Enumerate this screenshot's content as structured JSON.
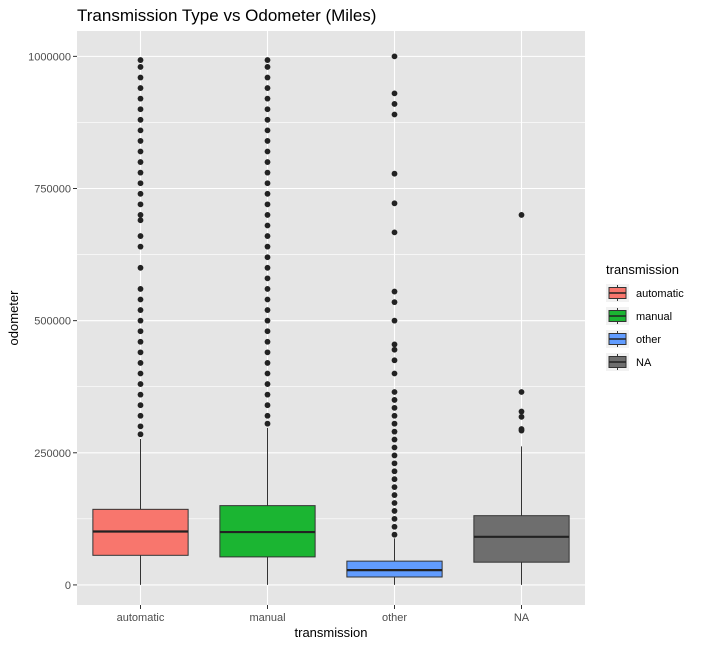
{
  "chart_data": {
    "type": "boxplot",
    "title": "Transmission Type vs Odometer (Miles)",
    "xlabel": "transmission",
    "ylabel": "odometer",
    "ylim": [
      -38000,
      1048000
    ],
    "y_ticks": [
      0,
      250000,
      500000,
      750000,
      1000000
    ],
    "y_tick_labels": [
      "0",
      "250000",
      "500000",
      "750000",
      "1000000"
    ],
    "grid": true,
    "legend": {
      "title": "transmission",
      "position": "right"
    },
    "categories": [
      "automatic",
      "manual",
      "other",
      "NA"
    ],
    "colors": {
      "automatic": "#F8766D",
      "manual": "#1BB532",
      "other": "#619CFF",
      "NA": "#6E6E6E",
      "panel_background": "#E5E5E5",
      "grid_line": "#FFFFFF"
    },
    "boxes": [
      {
        "category": "automatic",
        "whisker_low": 0,
        "q1": 56000,
        "median": 101000,
        "q3": 143000,
        "whisker_high": 276000,
        "outliers": [
          285000,
          300000,
          320000,
          340000,
          360000,
          380000,
          400000,
          420000,
          440000,
          460000,
          480000,
          500000,
          520000,
          540000,
          560000,
          600000,
          640000,
          660000,
          690000,
          700000,
          720000,
          740000,
          760000,
          780000,
          800000,
          820000,
          840000,
          860000,
          880000,
          900000,
          920000,
          940000,
          960000,
          980000,
          993000
        ]
      },
      {
        "category": "manual",
        "whisker_low": 0,
        "q1": 53000,
        "median": 100000,
        "q3": 150000,
        "whisker_high": 297000,
        "outliers": [
          305000,
          320000,
          340000,
          360000,
          380000,
          400000,
          420000,
          440000,
          460000,
          480000,
          500000,
          520000,
          540000,
          560000,
          580000,
          600000,
          620000,
          640000,
          660000,
          680000,
          700000,
          720000,
          740000,
          760000,
          780000,
          800000,
          820000,
          840000,
          860000,
          880000,
          900000,
          920000,
          940000,
          960000,
          980000,
          993000
        ]
      },
      {
        "category": "other",
        "whisker_low": 0,
        "q1": 15000,
        "median": 28000,
        "q3": 45000,
        "whisker_high": 88000,
        "outliers": [
          95000,
          110000,
          125000,
          140000,
          155000,
          170000,
          185000,
          200000,
          215000,
          230000,
          245000,
          260000,
          275000,
          290000,
          305000,
          320000,
          335000,
          350000,
          365000,
          400000,
          425000,
          445000,
          455000,
          500000,
          535000,
          555000,
          667000,
          722000,
          778000,
          890000,
          910000,
          930000,
          1000000
        ]
      },
      {
        "category": "NA",
        "whisker_low": 0,
        "q1": 43000,
        "median": 91000,
        "q3": 131000,
        "whisker_high": 262000,
        "outliers": [
          292000,
          295000,
          318000,
          328000,
          365000,
          700000
        ]
      }
    ]
  }
}
